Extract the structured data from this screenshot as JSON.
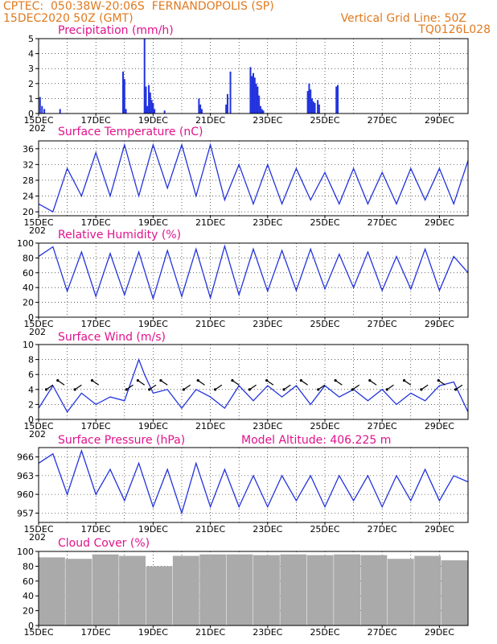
{
  "header": {
    "line1_left": "CPTEC:  050:38W-20:06S  FERNANDOPOLIS (SP)",
    "line2_left": "15DEC2020 50Z (GMT)",
    "line2_right": "Vertical Grid Line: 50Z",
    "line3_right": "TQ0126L028"
  },
  "colors": {
    "header": "#e07a1f",
    "title": "#e0138c",
    "line": "#2233dd",
    "bars_precip": "#2233dd",
    "bars_cloud": "#aaaaaa"
  },
  "x_axis": {
    "tick_labels": [
      "15DEC",
      "17DEC",
      "19DEC",
      "21DEC",
      "23DEC",
      "25DEC",
      "27DEC",
      "29DEC"
    ],
    "cut_label": "202",
    "range_days": [
      0,
      15
    ]
  },
  "chart_data": [
    {
      "type": "bar",
      "title": "Precipitation (mm/h)",
      "ylim": [
        0,
        5
      ],
      "yticks": [
        "0",
        "1",
        "2",
        "3",
        "4",
        "5"
      ],
      "x_days": [
        0.05,
        0.12,
        0.2,
        0.75,
        2.95,
        3.0,
        3.05,
        3.7,
        3.75,
        3.8,
        3.85,
        3.9,
        3.95,
        4.0,
        4.05,
        4.4,
        5.6,
        5.65,
        5.7,
        6.55,
        6.6,
        6.7,
        7.4,
        7.45,
        7.5,
        7.55,
        7.6,
        7.65,
        7.7,
        7.75,
        7.8,
        7.85,
        9.4,
        9.45,
        9.5,
        9.55,
        9.6,
        9.65,
        9.75,
        9.8,
        10.4,
        10.45
      ],
      "values": [
        1.1,
        0.5,
        0.3,
        0.3,
        2.8,
        2.3,
        0.3,
        5.0,
        1.8,
        0.5,
        1.9,
        1.4,
        0.9,
        0.7,
        0.3,
        0.2,
        1.0,
        0.6,
        0.3,
        0.6,
        1.3,
        2.8,
        3.1,
        2.5,
        2.7,
        2.4,
        2.0,
        1.8,
        1.2,
        0.5,
        0.3,
        0.2,
        1.5,
        2.0,
        1.6,
        1.0,
        0.8,
        0.7,
        0.9,
        0.6,
        1.8,
        1.9
      ]
    },
    {
      "type": "line",
      "title": "Surface Temperature (nC)",
      "ylim": [
        19,
        38
      ],
      "yticks": [
        "20",
        "24",
        "28",
        "32",
        "36"
      ],
      "x_days": [
        0,
        0.5,
        1,
        1.5,
        2,
        2.5,
        3,
        3.5,
        4,
        4.5,
        5,
        5.5,
        6,
        6.5,
        7,
        7.5,
        8,
        8.5,
        9,
        9.5,
        10,
        10.5,
        11,
        11.5,
        12,
        12.5,
        13,
        13.5,
        14,
        14.5,
        15
      ],
      "values": [
        22,
        20,
        31,
        24,
        35,
        24,
        37,
        24,
        37,
        26,
        37,
        24,
        37,
        23,
        32,
        22,
        32,
        22,
        31,
        23,
        30,
        22,
        31,
        22,
        30,
        22,
        31,
        23,
        31,
        22,
        33
      ]
    },
    {
      "type": "line",
      "title": "Relative Humidity (%)",
      "ylim": [
        0,
        100
      ],
      "yticks": [
        "0",
        "20",
        "40",
        "60",
        "80",
        "100"
      ],
      "x_days": [
        0,
        0.5,
        1,
        1.5,
        2,
        2.5,
        3,
        3.5,
        4,
        4.5,
        5,
        5.5,
        6,
        6.5,
        7,
        7.5,
        8,
        8.5,
        9,
        9.5,
        10,
        10.5,
        11,
        11.5,
        12,
        12.5,
        13,
        13.5,
        14,
        14.5,
        15
      ],
      "values": [
        82,
        95,
        35,
        88,
        28,
        86,
        30,
        88,
        25,
        90,
        28,
        92,
        26,
        96,
        30,
        92,
        35,
        90,
        36,
        92,
        38,
        85,
        40,
        88,
        36,
        82,
        38,
        92,
        36,
        82,
        60
      ]
    },
    {
      "type": "line",
      "title": "Surface Wind (m/s)",
      "ylim": [
        0,
        10
      ],
      "yticks": [
        "0",
        "2",
        "4",
        "6",
        "8",
        "10"
      ],
      "x_days": [
        0,
        0.5,
        1,
        1.5,
        2,
        2.5,
        3,
        3.5,
        3.7,
        4,
        4.5,
        5,
        5.5,
        6,
        6.5,
        7,
        7.5,
        8,
        8.5,
        9,
        9.5,
        10,
        10.5,
        11,
        11.5,
        12,
        12.5,
        13,
        13.5,
        14,
        14.5,
        15
      ],
      "values": [
        1.5,
        4.5,
        1.0,
        3.5,
        2.0,
        3.0,
        2.5,
        8.0,
        6.0,
        3.5,
        4.0,
        1.5,
        4.0,
        3.0,
        1.5,
        4.5,
        2.5,
        4.5,
        3.0,
        4.5,
        2.0,
        4.5,
        3.0,
        4.0,
        2.5,
        4.0,
        2.0,
        3.5,
        2.5,
        4.5,
        5.0,
        1.0
      ],
      "arrows_days": [
        0.5,
        0.9,
        1.5,
        2.1,
        3.3,
        3.7,
        4.1,
        4.5,
        5.3,
        5.8,
        6.4,
        7.0,
        7.6,
        8.2,
        8.8,
        9.4,
        10.0,
        10.6,
        11.2,
        11.8,
        12.4,
        13.0,
        13.6,
        14.2,
        14.8
      ]
    },
    {
      "type": "line",
      "title": "Surface Pressure (hPa)",
      "annotation": "Model Altitude: 406.225  m",
      "ylim": [
        955.5,
        967.5
      ],
      "yticks": [
        "957",
        "960",
        "963",
        "966"
      ],
      "x_days": [
        0,
        0.5,
        1,
        1.5,
        2,
        2.5,
        3,
        3.5,
        4,
        4.5,
        5,
        5.5,
        6,
        6.5,
        7,
        7.5,
        8,
        8.5,
        9,
        9.5,
        10,
        10.5,
        11,
        11.5,
        12,
        12.5,
        13,
        13.5,
        14,
        14.5,
        15
      ],
      "values": [
        965,
        966.5,
        960,
        967,
        960,
        964,
        959,
        965,
        958,
        964,
        957,
        965,
        958,
        964,
        958,
        963,
        958,
        963,
        959,
        963,
        958,
        963,
        959,
        963,
        958,
        963,
        959,
        964,
        959,
        963,
        962
      ]
    },
    {
      "type": "bar",
      "title": "Cloud Cover (%)",
      "ylim": [
        0,
        100
      ],
      "yticks": [
        "0",
        "20",
        "40",
        "60",
        "80",
        "100"
      ],
      "x_days": [
        0,
        1,
        2,
        3,
        4,
        5,
        6,
        7,
        8,
        9,
        10,
        11,
        12,
        13,
        14,
        15
      ],
      "values": [
        92,
        90,
        96,
        94,
        80,
        94,
        96,
        96,
        95,
        96,
        95,
        96,
        95,
        90,
        94,
        88
      ]
    }
  ]
}
